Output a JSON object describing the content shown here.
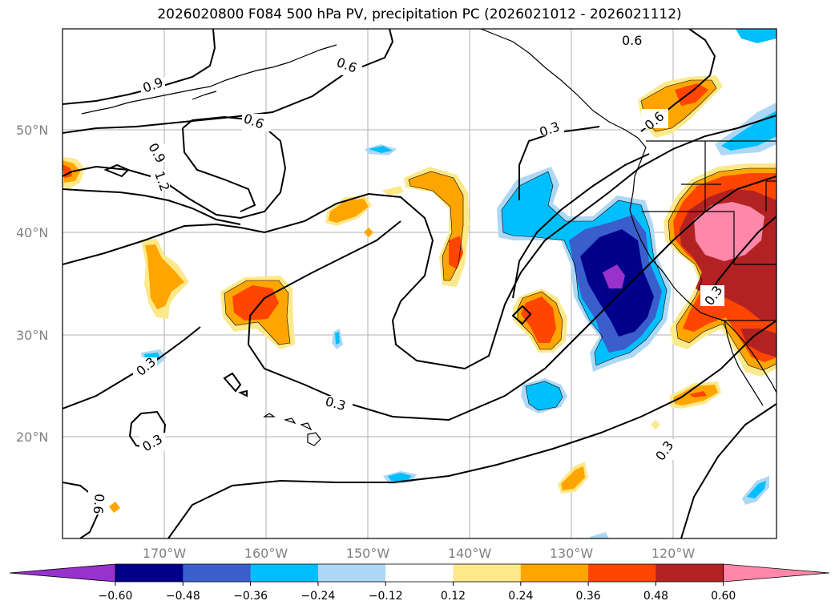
{
  "title": "2026020800 F084 500 hPa PV, precipitation PC (2026021012 - 2026021112)",
  "map": {
    "lat_labels": [
      "50°N",
      "40°N",
      "30°N",
      "20°N"
    ],
    "lon_labels": [
      "170°W",
      "160°W",
      "150°W",
      "140°W",
      "130°W",
      "120°W"
    ],
    "pv_contour_labels": [
      "0.9",
      "0.9",
      "1.2",
      "0.6",
      "0.6",
      "0.6",
      "0.6",
      "0.3",
      "0.3",
      "0.3",
      "0.3",
      "0.3",
      "0.3",
      "0.6"
    ]
  },
  "colorbar": {
    "ticks": [
      "−0.60",
      "−0.48",
      "−0.36",
      "−0.24",
      "−0.12",
      "0.12",
      "0.24",
      "0.36",
      "0.48",
      "0.60"
    ],
    "colors": [
      "#9932cc",
      "#00008b",
      "#3a5fcd",
      "#00bfff",
      "#add8f5",
      "#ffffff",
      "#fde98a",
      "#ffa500",
      "#ff4500",
      "#b22222",
      "#ff88aa"
    ]
  }
}
